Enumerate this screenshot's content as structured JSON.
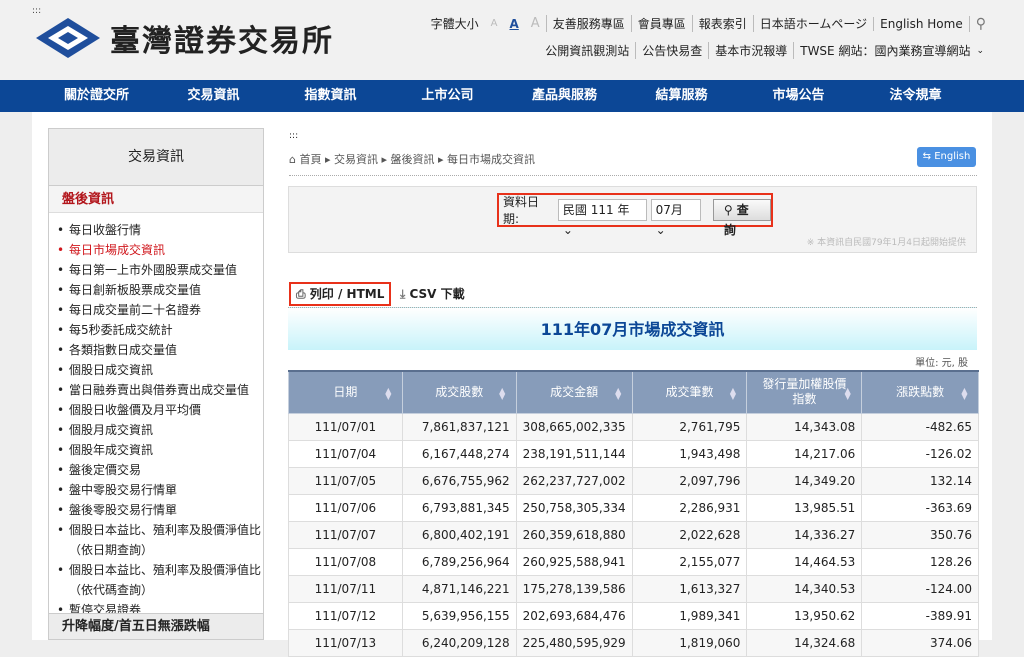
{
  "header": {
    "logo_text": "臺灣證券交易所",
    "font_size_label": "字體大小",
    "font_sizes": [
      "A",
      "A",
      "A"
    ],
    "links_row1": [
      "友善服務專區",
      "會員專區",
      "報表索引",
      "日本語ホームページ",
      "English Home"
    ],
    "links_row2": [
      "公開資訊觀測站",
      "公告快易查",
      "基本市況報導",
      "TWSE 網站：國內業務宣導網站"
    ]
  },
  "nav": [
    "關於證交所",
    "交易資訊",
    "指數資訊",
    "上市公司",
    "產品與服務",
    "結算服務",
    "市場公告",
    "法令規章"
  ],
  "sidebar": {
    "title": "交易資訊",
    "section": "盤後資訊",
    "items": [
      "每日收盤行情",
      "每日市場成交資訊",
      "每日第一上市外國股票成交量值",
      "每日創新板股票成交量值",
      "每日成交量前二十名證券",
      "每5秒委託成交統計",
      "各類指數日成交量值",
      "個股日成交資訊",
      "當日融券賣出與借券賣出成交量值",
      "個股日收盤價及月平均價",
      "個股月成交資訊",
      "個股年成交資訊",
      "盤後定價交易",
      "盤中零股交易行情單",
      "盤後零股交易行情單",
      "個股日本益比、殖利率及股價淨值比（依日期查詢）",
      "個股日本益比、殖利率及股價淨值比（依代碼查詢）",
      "暫停交易證券"
    ],
    "active": 1,
    "footer": "升降幅度/首五日無漲跌幅"
  },
  "breadcrumb": [
    "首頁",
    "交易資訊",
    "盤後資訊",
    "每日市場成交資訊"
  ],
  "english_button": "English",
  "query": {
    "label": "資料日期:",
    "year": "民國 111 年",
    "month": "07月",
    "button": "查詢",
    "note": "※ 本資訊自民國79年1月4日起開始提供"
  },
  "actions": {
    "print": "列印 / HTML",
    "csv": "CSV 下載"
  },
  "table": {
    "title": "111年07月市場成交資訊",
    "unit": "單位: 元, 股",
    "columns": [
      "日期",
      "成交股數",
      "成交金額",
      "成交筆數",
      "發行量加權股價指數",
      "漲跌點數"
    ],
    "rows": [
      [
        "111/07/01",
        "7,861,837,121",
        "308,665,002,335",
        "2,761,795",
        "14,343.08",
        "-482.65"
      ],
      [
        "111/07/04",
        "6,167,448,274",
        "238,191,511,144",
        "1,943,498",
        "14,217.06",
        "-126.02"
      ],
      [
        "111/07/05",
        "6,676,755,962",
        "262,237,727,002",
        "2,097,796",
        "14,349.20",
        "132.14"
      ],
      [
        "111/07/06",
        "6,793,881,345",
        "250,758,305,334",
        "2,286,931",
        "13,985.51",
        "-363.69"
      ],
      [
        "111/07/07",
        "6,800,402,191",
        "260,359,618,880",
        "2,022,628",
        "14,336.27",
        "350.76"
      ],
      [
        "111/07/08",
        "6,789,256,964",
        "260,925,588,941",
        "2,155,077",
        "14,464.53",
        "128.26"
      ],
      [
        "111/07/11",
        "4,871,146,221",
        "175,278,139,586",
        "1,613,327",
        "14,340.53",
        "-124.00"
      ],
      [
        "111/07/12",
        "5,639,956,155",
        "202,693,684,476",
        "1,989,341",
        "13,950.62",
        "-389.91"
      ],
      [
        "111/07/13",
        "6,240,209,128",
        "225,480,595,929",
        "1,819,060",
        "14,324.68",
        "374.06"
      ]
    ]
  }
}
